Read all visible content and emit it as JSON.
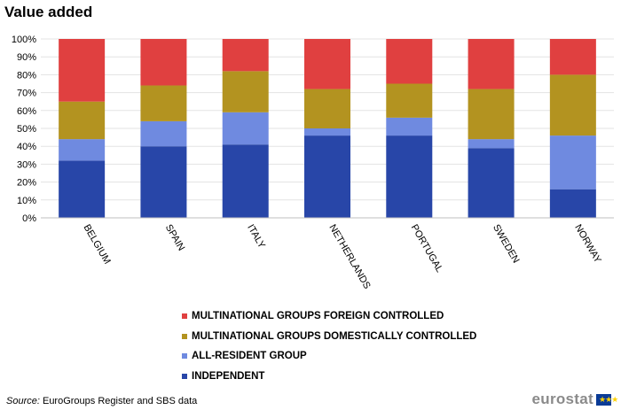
{
  "header": {
    "title": "Value added"
  },
  "chart_data": {
    "type": "bar",
    "stacked": true,
    "categories": [
      "BELGIUM",
      "SPAIN",
      "ITALY",
      "NETHERLANDS",
      "PORTUGAL",
      "SWEDEN",
      "NORWAY"
    ],
    "series": [
      {
        "name": "INDEPENDENT",
        "color": "#2846a8",
        "values": [
          32,
          40,
          41,
          46,
          46,
          39,
          16
        ]
      },
      {
        "name": "ALL-RESIDENT GROUP",
        "color": "#6f8ae0",
        "values": [
          12,
          14,
          18,
          4,
          10,
          5,
          30
        ]
      },
      {
        "name": "MULTINATIONAL GROUPS DOMESTICALLY CONTROLLED",
        "color": "#b39320",
        "values": [
          21,
          20,
          23,
          22,
          19,
          28,
          34
        ]
      },
      {
        "name": "MULTINATIONAL GROUPS FOREIGN CONTROLLED",
        "color": "#e04040",
        "values": [
          35,
          26,
          18,
          28,
          25,
          28,
          20
        ]
      }
    ],
    "legend_order": [
      3,
      2,
      1,
      0
    ],
    "ylim": [
      0,
      100
    ],
    "yticks": [
      "0%",
      "10%",
      "20%",
      "30%",
      "40%",
      "50%",
      "60%",
      "70%",
      "80%",
      "90%",
      "100%"
    ],
    "grid": true,
    "legend_position": "bottom"
  },
  "footer": {
    "source_label": "Source:",
    "source_text": " EuroGroups Register and SBS data",
    "logo_text": "eurostat",
    "flag_stars": "★★★"
  }
}
